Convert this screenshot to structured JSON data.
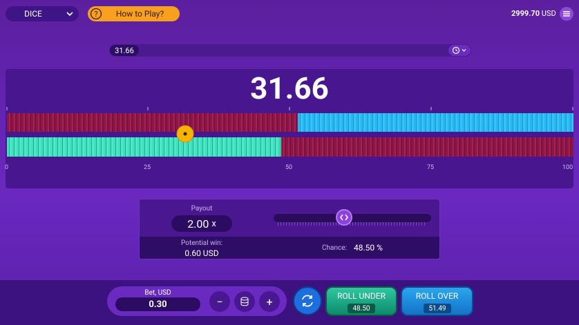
{
  "header": {
    "game": "DICE",
    "help": "How to Play?",
    "balance": "2999.70",
    "currency": "USD"
  },
  "history": {
    "last": "31.66"
  },
  "result": "31.66",
  "scale": {
    "labels": [
      "0",
      "25",
      "50",
      "75",
      "100"
    ]
  },
  "settings": {
    "payout_label": "Payout",
    "payout": "2.00",
    "payout_unit": "x",
    "potential_win_label": "Potential win:",
    "potential_win": "0.60 USD",
    "chance_label": "Chance:",
    "chance": "48.50 %"
  },
  "controls": {
    "bet_label": "Bet, USD",
    "bet": "0.30",
    "roll_under": "ROLL UNDER",
    "roll_under_value": "48.50",
    "roll_over": "ROLL OVER",
    "roll_over_value": "51.49"
  }
}
